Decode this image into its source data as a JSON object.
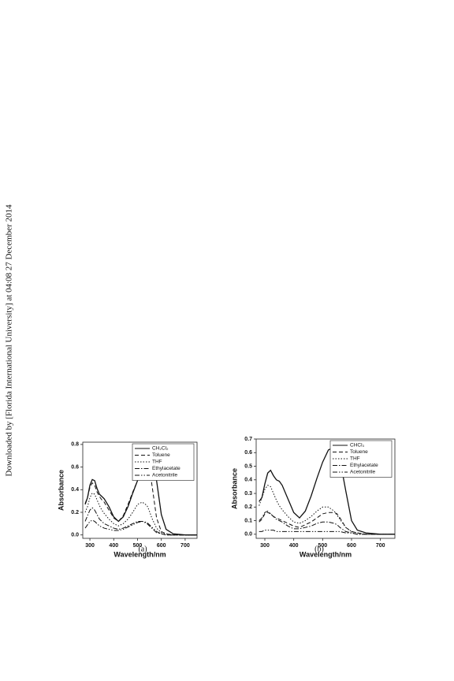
{
  "sidebar": "Downloaded by [Florida International University] at 04:08 27 December 2014",
  "chart_data": [
    {
      "type": "line",
      "caption": "(a)",
      "x_label": "Wavelength/nm",
      "y_label": "Absorbance",
      "xlim": [
        270,
        750
      ],
      "xticks": [
        300,
        400,
        500,
        600,
        700
      ],
      "ylim": [
        -0.03,
        0.82
      ],
      "yticks": [
        {
          "value": 0,
          "label": "0.0"
        },
        0.2,
        0.4,
        0.6,
        0.8
      ],
      "legend": "upper right",
      "x": [
        280,
        290,
        300,
        310,
        320,
        330,
        340,
        350,
        360,
        380,
        400,
        420,
        440,
        460,
        480,
        500,
        520,
        540,
        550,
        560,
        580,
        600,
        620,
        650,
        700,
        750
      ],
      "series": [
        {
          "name": "CH₂Cl₂",
          "color": "#111",
          "line_style": "solid",
          "values": [
            0.27,
            0.33,
            0.44,
            0.49,
            0.48,
            0.41,
            0.36,
            0.34,
            0.32,
            0.25,
            0.16,
            0.12,
            0.16,
            0.25,
            0.37,
            0.48,
            0.58,
            0.68,
            0.71,
            0.69,
            0.48,
            0.18,
            0.05,
            0.01,
            0,
            0
          ]
        },
        {
          "name": "Toluene",
          "color": "#111",
          "line_style": "dashed",
          "values": [
            0.28,
            0.33,
            0.42,
            0.46,
            0.44,
            0.38,
            0.34,
            0.31,
            0.29,
            0.22,
            0.15,
            0.12,
            0.17,
            0.27,
            0.38,
            0.48,
            0.56,
            0.62,
            0.6,
            0.45,
            0.15,
            0.03,
            0.01,
            0,
            0,
            0
          ]
        },
        {
          "name": "THF",
          "color": "#111",
          "line_style": "dotted",
          "values": [
            0.2,
            0.25,
            0.33,
            0.37,
            0.36,
            0.31,
            0.26,
            0.22,
            0.19,
            0.14,
            0.1,
            0.08,
            0.1,
            0.14,
            0.2,
            0.27,
            0.29,
            0.26,
            0.21,
            0.15,
            0.06,
            0.02,
            0.01,
            0,
            0,
            0
          ]
        },
        {
          "name": "Ethylacetate",
          "color": "#111",
          "line_style": "dashdot",
          "values": [
            0.12,
            0.17,
            0.22,
            0.24,
            0.22,
            0.18,
            0.14,
            0.12,
            0.1,
            0.08,
            0.06,
            0.05,
            0.06,
            0.08,
            0.1,
            0.12,
            0.12,
            0.1,
            0.08,
            0.06,
            0.02,
            0.01,
            0,
            0,
            0,
            0
          ]
        },
        {
          "name": "Acetonitrile",
          "color": "#111",
          "line_style": "dashdotdot",
          "values": [
            0.06,
            0.09,
            0.12,
            0.13,
            0.12,
            0.1,
            0.08,
            0.07,
            0.06,
            0.05,
            0.04,
            0.04,
            0.05,
            0.07,
            0.09,
            0.11,
            0.12,
            0.11,
            0.09,
            0.07,
            0.03,
            0.01,
            0,
            0,
            0,
            0
          ]
        }
      ]
    },
    {
      "type": "line",
      "caption": "(b)",
      "x_label": "Wavelength/nm",
      "y_label": "Absorbance",
      "xlim": [
        270,
        750
      ],
      "xticks": [
        300,
        400,
        500,
        600,
        700
      ],
      "ylim": [
        -0.03,
        0.7
      ],
      "yticks": [
        {
          "value": 0,
          "label": "0.0"
        },
        0.1,
        0.2,
        0.3,
        0.4,
        0.5,
        0.6,
        0.7
      ],
      "legend": "upper right",
      "x": [
        280,
        290,
        300,
        310,
        320,
        330,
        340,
        350,
        360,
        380,
        400,
        420,
        440,
        460,
        480,
        500,
        520,
        540,
        550,
        560,
        580,
        600,
        620,
        650,
        700,
        750
      ],
      "series": [
        {
          "name": "CHCl₃",
          "color": "#111",
          "line_style": "solid",
          "values": [
            0.24,
            0.27,
            0.37,
            0.45,
            0.47,
            0.43,
            0.4,
            0.39,
            0.36,
            0.26,
            0.16,
            0.12,
            0.17,
            0.28,
            0.41,
            0.53,
            0.62,
            0.64,
            0.62,
            0.55,
            0.32,
            0.1,
            0.03,
            0.01,
            0,
            0
          ]
        },
        {
          "name": "Toluene",
          "color": "#111",
          "line_style": "dashed",
          "values": [
            0.09,
            0.11,
            0.15,
            0.16,
            0.15,
            0.13,
            0.12,
            0.11,
            0.1,
            0.08,
            0.06,
            0.05,
            0.07,
            0.09,
            0.12,
            0.15,
            0.16,
            0.16,
            0.15,
            0.12,
            0.05,
            0.02,
            0.01,
            0,
            0,
            0
          ]
        },
        {
          "name": "THF",
          "color": "#111",
          "line_style": "dotted",
          "values": [
            0.21,
            0.27,
            0.33,
            0.36,
            0.35,
            0.3,
            0.25,
            0.21,
            0.18,
            0.13,
            0.09,
            0.08,
            0.1,
            0.13,
            0.17,
            0.2,
            0.2,
            0.17,
            0.14,
            0.11,
            0.05,
            0.02,
            0.01,
            0,
            0,
            0
          ]
        },
        {
          "name": "Ethylacetate",
          "color": "#111",
          "line_style": "dashdot",
          "values": [
            0.1,
            0.12,
            0.16,
            0.17,
            0.15,
            0.13,
            0.11,
            0.1,
            0.09,
            0.06,
            0.04,
            0.04,
            0.05,
            0.06,
            0.08,
            0.09,
            0.09,
            0.08,
            0.07,
            0.05,
            0.02,
            0.01,
            0,
            0,
            0,
            0
          ]
        },
        {
          "name": "Acetonitrile",
          "color": "#111",
          "line_style": "dashdotdot",
          "values": [
            0.02,
            0.02,
            0.03,
            0.03,
            0.03,
            0.03,
            0.02,
            0.02,
            0.02,
            0.02,
            0.02,
            0.02,
            0.02,
            0.02,
            0.02,
            0.02,
            0.02,
            0.02,
            0.02,
            0.02,
            0.01,
            0.01,
            0,
            0,
            0,
            0
          ]
        }
      ]
    }
  ]
}
